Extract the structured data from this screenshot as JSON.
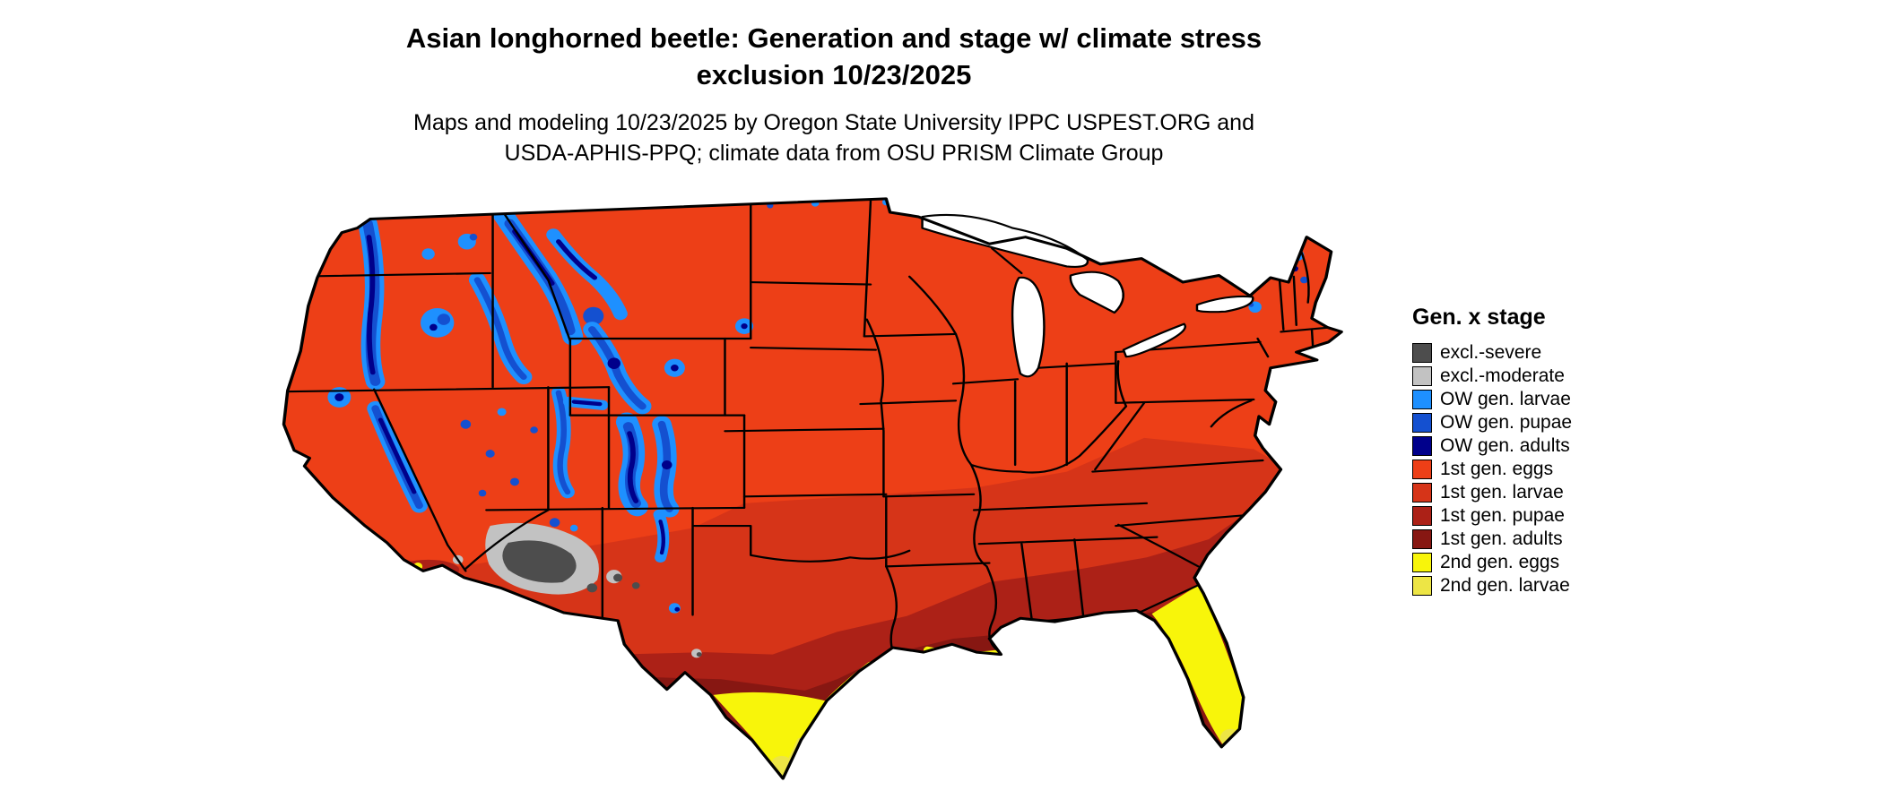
{
  "title": {
    "line1": "Asian longhorned beetle: Generation and stage w/ climate stress",
    "line2": "exclusion 10/23/2025"
  },
  "subtitle": {
    "line1": "Maps and modeling 10/23/2025 by Oregon State University IPPC USPEST.ORG and",
    "line2": "USDA-APHIS-PPQ; climate data from OSU PRISM Climate Group"
  },
  "legend": {
    "title": "Gen. x stage",
    "items": [
      {
        "key": "excl_severe",
        "label": "excl.-severe",
        "color": "#4D4D4D"
      },
      {
        "key": "excl_moderate",
        "label": "excl.-moderate",
        "color": "#C2C2C2"
      },
      {
        "key": "ow_larvae",
        "label": "OW gen. larvae",
        "color": "#1E90FF"
      },
      {
        "key": "ow_pupae",
        "label": "OW gen. pupae",
        "color": "#1450D0"
      },
      {
        "key": "ow_adults",
        "label": "OW gen. adults",
        "color": "#00008B"
      },
      {
        "key": "g1_eggs",
        "label": "1st gen. eggs",
        "color": "#ED3F17"
      },
      {
        "key": "g1_larvae",
        "label": "1st gen. larvae",
        "color": "#D63418"
      },
      {
        "key": "g1_pupae",
        "label": "1st gen. pupae",
        "color": "#AC2117"
      },
      {
        "key": "g1_adults",
        "label": "1st gen. adults",
        "color": "#871712"
      },
      {
        "key": "g2_eggs",
        "label": "2nd gen. eggs",
        "color": "#F8F50A"
      },
      {
        "key": "g2_larvae",
        "label": "2nd gen. larvae",
        "color": "#EDE545"
      }
    ]
  }
}
